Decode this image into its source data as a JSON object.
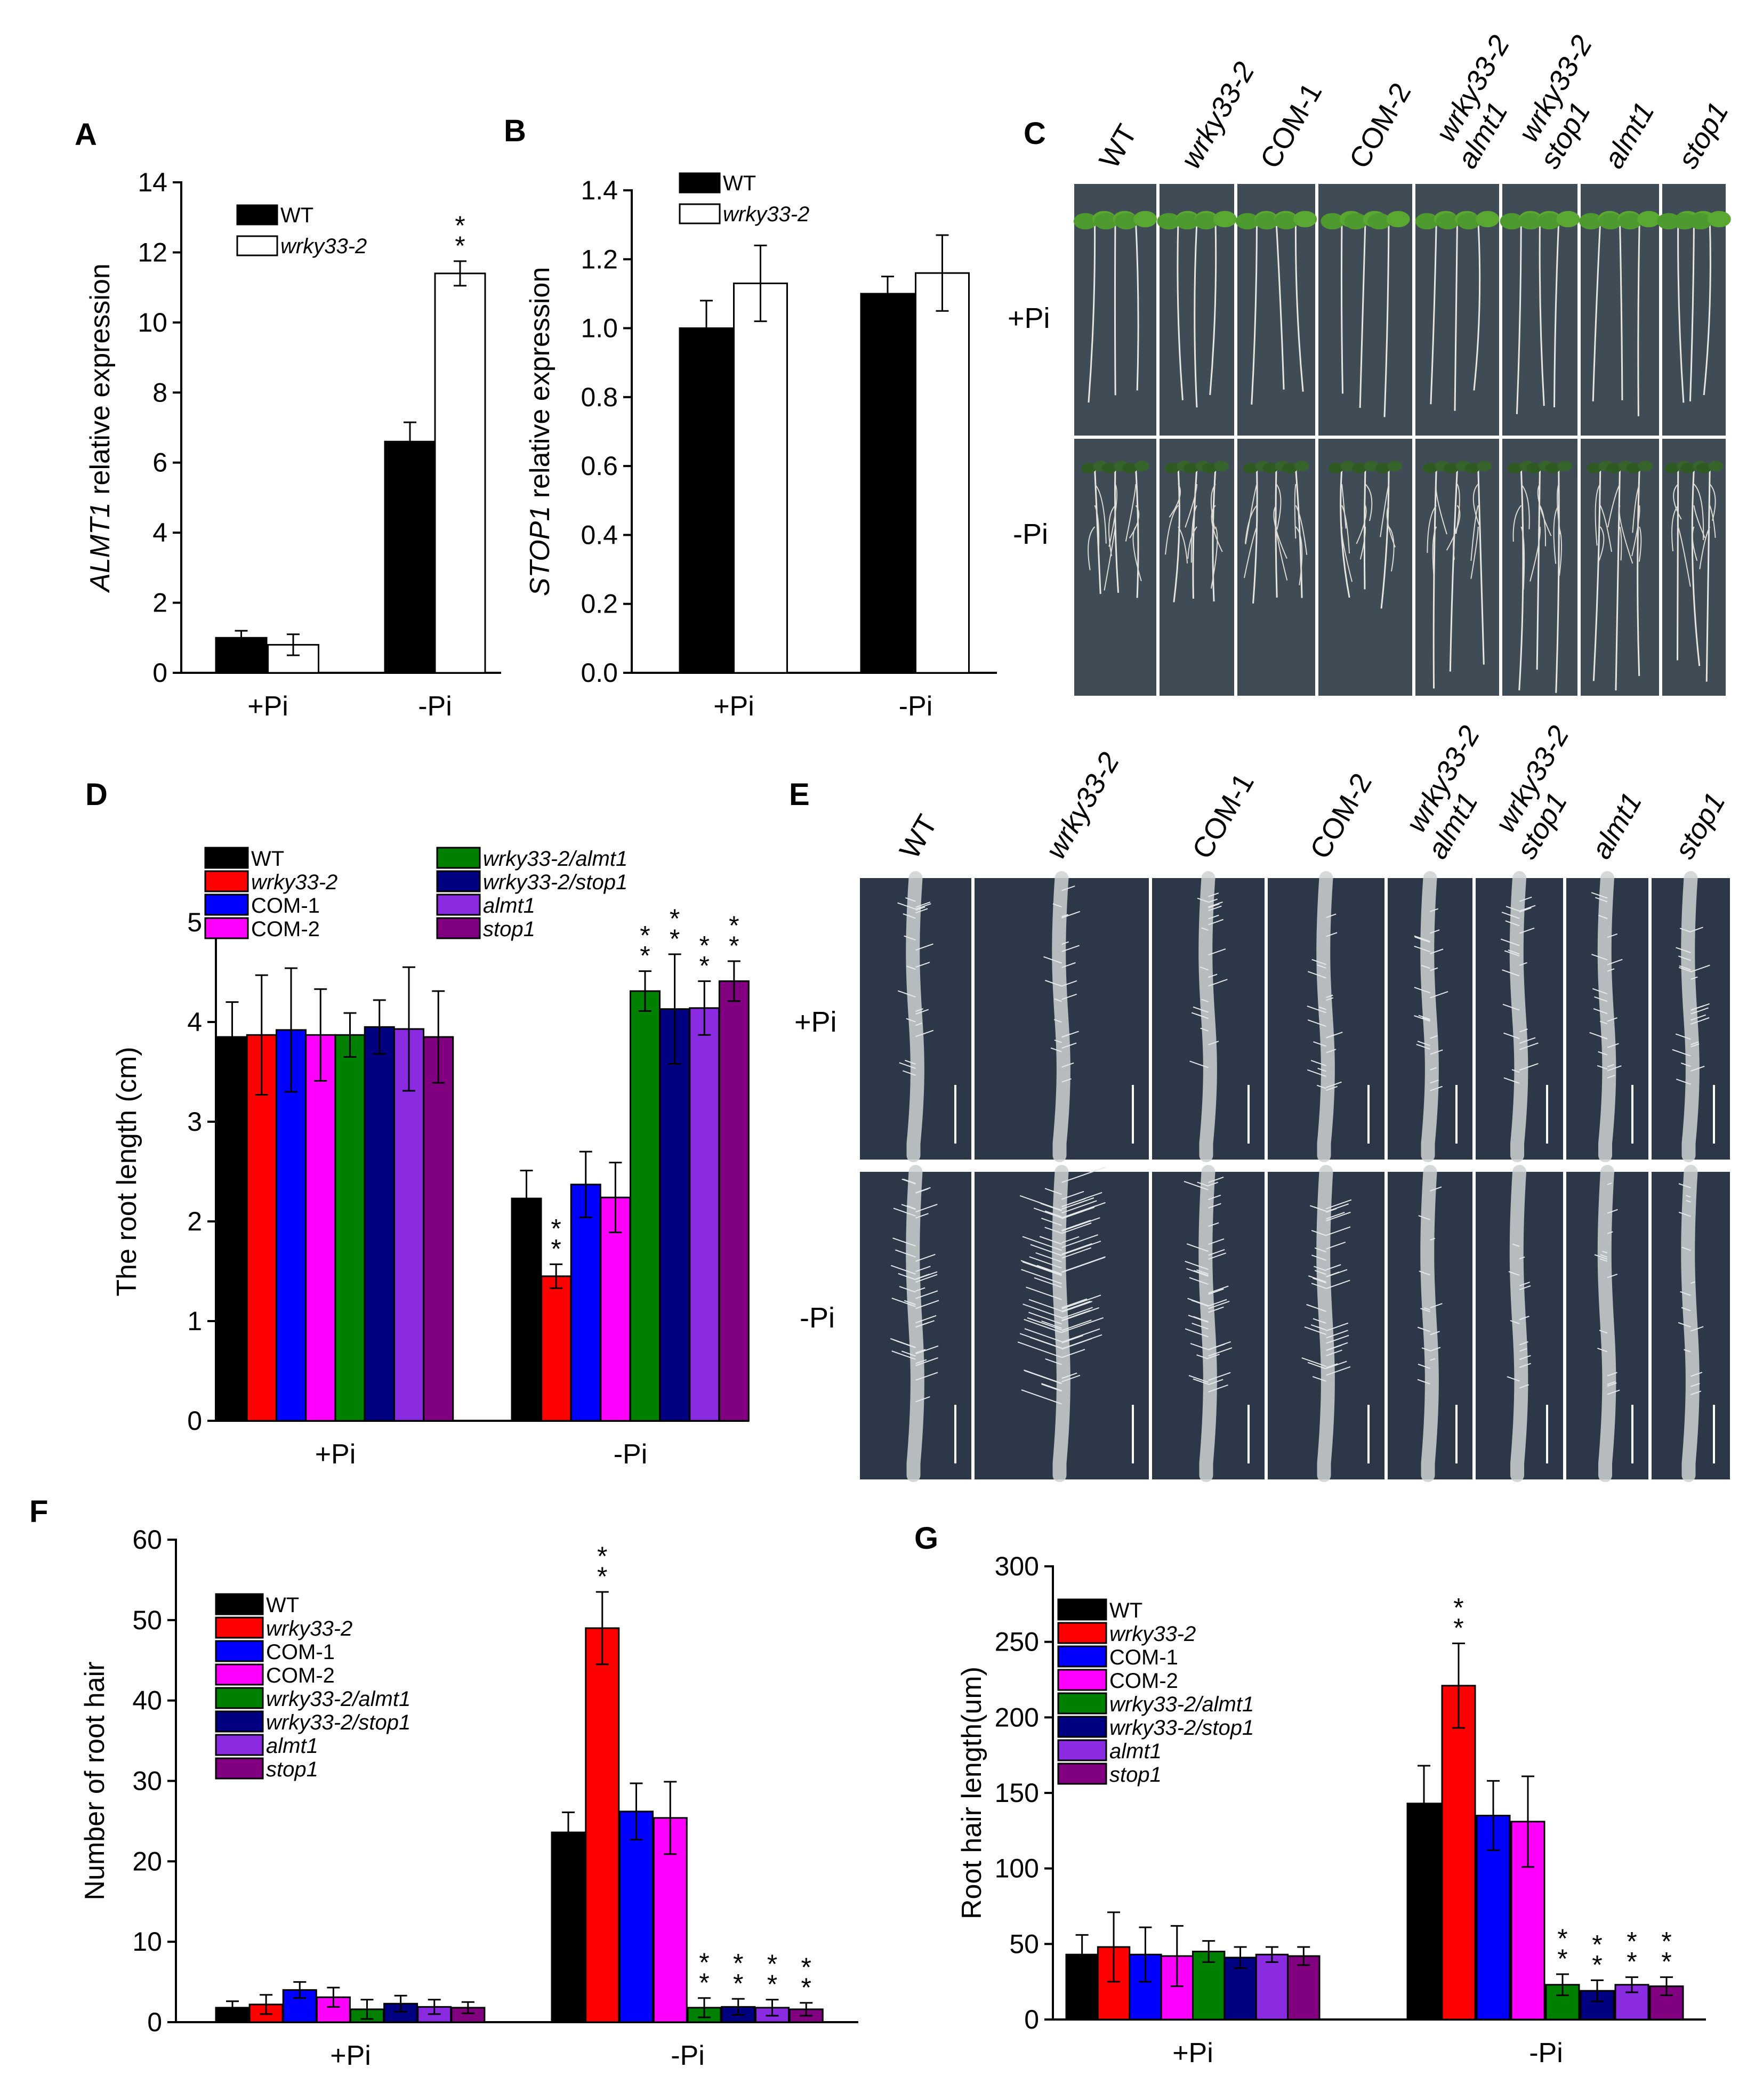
{
  "panel_letters": {
    "A": "A",
    "B": "B",
    "C": "C",
    "D": "D",
    "E": "E",
    "F": "F",
    "G": "G"
  },
  "colors": {
    "WT": "#000000",
    "wrky33-2": "#ff0000",
    "COM-1": "#0000ff",
    "COM-2": "#ff00ff",
    "wrky33-2/almt1": "#008000",
    "wrky33-2/stop1": "#000080",
    "almt1": "#8a2be2",
    "stop1": "#800080",
    "photo_bg_C": "#3f4b55",
    "photo_bg_E": "#2c3848"
  },
  "photo_C": {
    "genotypes": [
      "WT",
      "wrky33-2",
      "COM-1",
      "COM-2",
      "wrky33-2\nalmt1",
      "wrky33-2\nstop1",
      "almt1",
      "stop1"
    ],
    "rows": [
      "+Pi",
      "-Pi"
    ]
  },
  "photo_E": {
    "genotypes": [
      "WT",
      "wrky33-2",
      "COM-1",
      "COM-2",
      "wrky33-2\nalmt1",
      "wrky33-2\nstop1",
      "almt1",
      "stop1"
    ],
    "rows": [
      "+Pi",
      "-Pi"
    ]
  },
  "chart_data": [
    {
      "panel": "A",
      "type": "bar",
      "title": "",
      "xlabel": "",
      "ylabel": "ALMT1 relative expression",
      "ylabel_italic": "ALMT1",
      "ylabel_rest": " relative expression",
      "categories": [
        "+Pi",
        "-Pi"
      ],
      "ylim": [
        0,
        14
      ],
      "yticks": [
        0,
        2,
        4,
        6,
        8,
        10,
        12,
        14
      ],
      "series": [
        {
          "name": "WT",
          "fill": "#000000",
          "values": [
            1.0,
            6.6
          ],
          "errors": [
            0.2,
            0.55
          ],
          "stars": [
            "",
            ""
          ]
        },
        {
          "name": "wrky33-2",
          "fill": "#ffffff",
          "values": [
            0.8,
            11.4
          ],
          "errors": [
            0.3,
            0.35
          ],
          "stars": [
            "",
            "**"
          ]
        }
      ]
    },
    {
      "panel": "B",
      "type": "bar",
      "title": "",
      "xlabel": "",
      "ylabel": "STOP1 relative expression",
      "ylabel_italic": "STOP1",
      "ylabel_rest": " relative expression",
      "categories": [
        "+Pi",
        "-Pi"
      ],
      "ylim": [
        0,
        1.4
      ],
      "yticks": [
        0.0,
        0.2,
        0.4,
        0.6,
        0.8,
        1.0,
        1.2,
        1.4
      ],
      "series": [
        {
          "name": "WT",
          "fill": "#000000",
          "values": [
            1.0,
            1.1
          ],
          "errors": [
            0.08,
            0.05
          ],
          "stars": [
            "",
            ""
          ]
        },
        {
          "name": "wrky33-2",
          "fill": "#ffffff",
          "values": [
            1.13,
            1.16
          ],
          "errors": [
            0.11,
            0.11
          ],
          "stars": [
            "",
            ""
          ]
        }
      ]
    },
    {
      "panel": "D",
      "type": "bar",
      "title": "",
      "xlabel": "",
      "ylabel": "The root length (cm)",
      "categories": [
        "+Pi",
        "-Pi"
      ],
      "ylim": [
        0,
        5
      ],
      "yticks": [
        0,
        1,
        2,
        3,
        4,
        5
      ],
      "series": [
        {
          "name": "WT",
          "values": [
            3.85,
            2.23
          ],
          "errors": [
            0.35,
            0.28
          ],
          "stars": [
            "",
            ""
          ]
        },
        {
          "name": "wrky33-2",
          "values": [
            3.87,
            1.45
          ],
          "errors": [
            0.6,
            0.12
          ],
          "stars": [
            "",
            "**"
          ]
        },
        {
          "name": "COM-1",
          "values": [
            3.92,
            2.37
          ],
          "errors": [
            0.62,
            0.33
          ],
          "stars": [
            "",
            ""
          ]
        },
        {
          "name": "COM-2",
          "values": [
            3.87,
            2.24
          ],
          "errors": [
            0.46,
            0.35
          ],
          "stars": [
            "",
            ""
          ]
        },
        {
          "name": "wrky33-2/almt1",
          "values": [
            3.87,
            4.31
          ],
          "errors": [
            0.22,
            0.2
          ],
          "stars": [
            "",
            "**"
          ]
        },
        {
          "name": "wrky33-2/stop1",
          "values": [
            3.95,
            4.13
          ],
          "errors": [
            0.27,
            0.55
          ],
          "stars": [
            "",
            "**"
          ]
        },
        {
          "name": "almt1",
          "values": [
            3.93,
            4.14
          ],
          "errors": [
            0.62,
            0.27
          ],
          "stars": [
            "",
            "**"
          ]
        },
        {
          "name": "stop1",
          "values": [
            3.85,
            4.41
          ],
          "errors": [
            0.46,
            0.2
          ],
          "stars": [
            "",
            "**"
          ]
        }
      ]
    },
    {
      "panel": "F",
      "type": "bar",
      "title": "",
      "xlabel": "",
      "ylabel": "Number of  root hair",
      "categories": [
        "+Pi",
        "-Pi"
      ],
      "ylim": [
        0,
        60
      ],
      "yticks": [
        0,
        10,
        20,
        30,
        40,
        50,
        60
      ],
      "series": [
        {
          "name": "WT",
          "values": [
            1.8,
            23.6
          ],
          "errors": [
            0.8,
            2.5
          ],
          "stars": [
            "",
            ""
          ]
        },
        {
          "name": "wrky33-2",
          "values": [
            2.2,
            49.0
          ],
          "errors": [
            1.2,
            4.5
          ],
          "stars": [
            "",
            "**"
          ]
        },
        {
          "name": "COM-1",
          "values": [
            4.0,
            26.2
          ],
          "errors": [
            1.0,
            3.5
          ],
          "stars": [
            "",
            ""
          ]
        },
        {
          "name": "COM-2",
          "values": [
            3.1,
            25.4
          ],
          "errors": [
            1.2,
            4.5
          ],
          "stars": [
            "",
            ""
          ]
        },
        {
          "name": "wrky33-2/almt1",
          "values": [
            1.6,
            1.8
          ],
          "errors": [
            1.2,
            1.2
          ],
          "stars": [
            "",
            "**"
          ]
        },
        {
          "name": "wrky33-2/stop1",
          "values": [
            2.3,
            1.9
          ],
          "errors": [
            1.0,
            1.0
          ],
          "stars": [
            "",
            "**"
          ]
        },
        {
          "name": "almt1",
          "values": [
            1.9,
            1.8
          ],
          "errors": [
            0.9,
            1.0
          ],
          "stars": [
            "",
            "**"
          ]
        },
        {
          "name": "stop1",
          "values": [
            1.8,
            1.6
          ],
          "errors": [
            0.7,
            0.8
          ],
          "stars": [
            "",
            "**"
          ]
        }
      ]
    },
    {
      "panel": "G",
      "type": "bar",
      "title": "",
      "xlabel": "",
      "ylabel": "Root hair length(um)",
      "categories": [
        "+Pi",
        "-Pi"
      ],
      "ylim": [
        0,
        300
      ],
      "yticks": [
        0,
        50,
        100,
        150,
        200,
        250,
        300
      ],
      "series": [
        {
          "name": "WT",
          "values": [
            43,
            143
          ],
          "errors": [
            13,
            25
          ],
          "stars": [
            "",
            ""
          ]
        },
        {
          "name": "wrky33-2",
          "values": [
            48,
            221
          ],
          "errors": [
            23,
            28
          ],
          "stars": [
            "",
            "**"
          ]
        },
        {
          "name": "COM-1",
          "values": [
            43,
            135
          ],
          "errors": [
            18,
            23
          ],
          "stars": [
            "",
            ""
          ]
        },
        {
          "name": "COM-2",
          "values": [
            42,
            131
          ],
          "errors": [
            20,
            30
          ],
          "stars": [
            "",
            ""
          ]
        },
        {
          "name": "wrky33-2/almt1",
          "values": [
            45,
            23
          ],
          "errors": [
            7,
            7
          ],
          "stars": [
            "",
            "**"
          ]
        },
        {
          "name": "wrky33-2/stop1",
          "values": [
            41,
            19
          ],
          "errors": [
            7,
            7
          ],
          "stars": [
            "",
            "**"
          ]
        },
        {
          "name": "almt1",
          "values": [
            43,
            23
          ],
          "errors": [
            5,
            5
          ],
          "stars": [
            "",
            "**"
          ]
        },
        {
          "name": "stop1",
          "values": [
            42,
            22
          ],
          "errors": [
            6,
            6
          ],
          "stars": [
            "",
            "**"
          ]
        }
      ]
    }
  ]
}
